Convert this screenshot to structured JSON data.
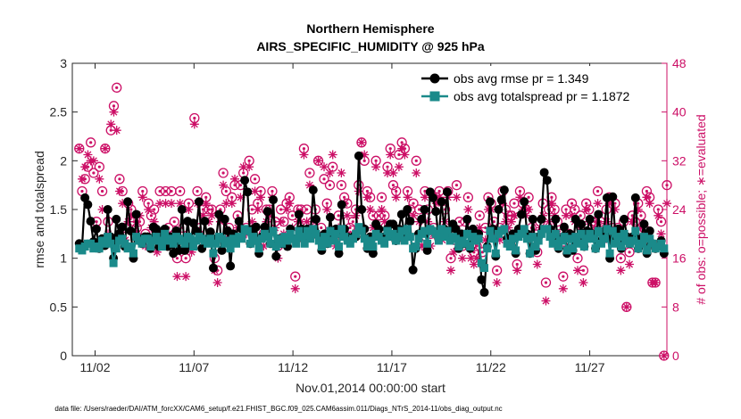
{
  "colors": {
    "rmse": "#000000",
    "spread": "#1a8a8a",
    "obs": "#cc0f66",
    "axis": "#262626"
  },
  "chart_data": {
    "type": "line",
    "title": "Northern Hemisphere",
    "subtitle": "AIRS_SPECIFIC_HUMIDITY @ 925 hPa",
    "xlabel": "Nov.01,2014 00:00:00 start",
    "ylabel": "rmse and totalspread",
    "y2label": "# of obs: o=possible; ∗=evaluated",
    "footnote": "data file: /Users/raeder/DAI/ATM_forcXX/CAM6_setup/f.e21.FHIST_BGC.f09_025.CAM6assim.011/Diags_NTrS_2014-11/obs_diag_output.nc",
    "xlim": [
      0.6,
      30.65
    ],
    "ylim": [
      0,
      3
    ],
    "y2lim": [
      0,
      48
    ],
    "x_ticks": [
      1.75,
      6.75,
      11.75,
      16.75,
      21.75,
      26.75
    ],
    "x_tick_labels": [
      "11/02",
      "11/07",
      "11/12",
      "11/17",
      "11/22",
      "11/27"
    ],
    "y_ticks": [
      0,
      0.5,
      1,
      1.5,
      2,
      2.5,
      3
    ],
    "y_tick_labels": [
      "0",
      "0.5",
      "1",
      "1.5",
      "2",
      "2.5",
      "3"
    ],
    "y2_ticks": [
      0,
      8,
      16,
      24,
      32,
      40,
      48
    ],
    "y2_tick_labels": [
      "0",
      "8",
      "16",
      "24",
      "32",
      "40",
      "48"
    ],
    "legend_position": "top-right",
    "series": [
      {
        "name": "obs avg rmse pr = 1.349",
        "values": [
          1.15,
          1.13,
          1.62,
          1.55,
          1.38,
          1.17,
          1.3,
          1.1,
          1.2,
          1.13,
          1.5,
          1.22,
          1.0,
          1.4,
          1.25,
          1.32,
          1.12,
          1.58,
          1.28,
          1.0,
          1.45,
          1.2,
          1.15,
          1.22,
          1.22,
          1.1,
          1.32,
          1.3,
          1.12,
          1.25,
          1.3,
          1.12,
          1.22,
          1.05,
          1.28,
          1.08,
          1.5,
          1.08,
          1.38,
          1.14,
          1.36,
          1.28,
          1.58,
          1.1,
          1.38,
          1.2,
          1.27,
          0.9,
          1.2,
          1.45,
          1.08,
          1.4,
          1.28,
          0.92,
          1.25,
          1.22,
          1.38,
          1.3,
          1.8,
          1.68,
          1.15,
          1.3,
          1.32,
          1.05,
          1.22,
          1.32,
          1.48,
          1.15,
          1.6,
          1.02,
          1.2,
          1.15,
          1.2,
          1.12,
          1.3,
          1.2,
          1.18,
          1.45,
          1.3,
          1.2,
          1.3,
          1.22,
          1.7,
          1.4,
          1.22,
          1.08,
          1.25,
          1.15,
          1.42,
          1.2,
          1.3,
          1.05,
          1.55,
          1.3,
          1.22,
          1.18,
          1.22,
          1.22,
          2.05,
          1.5,
          1.3,
          1.1,
          1.22,
          1.05,
          1.35,
          1.3,
          1.22,
          1.2,
          1.3,
          1.35,
          1.35,
          1.18,
          1.3,
          1.45,
          1.22,
          1.5,
          1.38,
          0.88,
          1.1,
          1.25,
          1.4,
          1.5,
          1.08,
          1.68,
          1.62,
          1.48,
          1.2,
          1.58,
          1.3,
          1.68,
          1.2,
          1.35,
          1.3,
          1.1,
          1.25,
          1.15,
          1.4,
          1.1,
          1.3,
          1.22,
          1.25,
          0.78,
          0.65,
          1.12,
          1.58,
          1.3,
          1.02,
          1.5,
          1.6,
          1.7,
          1.2,
          1.15,
          1.25,
          1.05,
          1.3,
          1.45,
          1.58,
          1.25,
          1.05,
          1.4,
          1.08,
          1.22,
          1.4,
          1.88,
          1.8,
          1.3,
          1.22,
          1.4,
          1.1,
          1.2,
          1.32,
          1.05,
          1.25,
          1.08,
          1.4,
          1.22,
          1.35,
          1.12,
          1.28,
          1.4,
          1.25,
          1.1,
          1.45,
          1.18,
          1.28,
          1.62,
          1.0,
          1.63,
          1.2,
          1.3,
          1.1,
          1.4,
          1.22,
          1.15,
          1.22,
          1.62,
          1.1,
          1.2,
          1.35,
          1.05,
          1.28,
          1.15,
          1.1,
          1.12,
          1.18,
          1.05
        ]
      },
      {
        "name": "obs avg totalspread pr = 1.1872",
        "values": [
          1.1,
          1.08,
          1.12,
          1.15,
          1.15,
          1.1,
          1.12,
          1.1,
          1.18,
          1.15,
          1.22,
          1.15,
          0.95,
          1.1,
          1.18,
          1.2,
          1.15,
          1.1,
          1.12,
          1.05,
          1.22,
          1.18,
          1.15,
          1.2,
          1.2,
          1.12,
          1.18,
          1.22,
          1.18,
          1.12,
          1.25,
          1.18,
          1.2,
          1.15,
          1.22,
          1.2,
          1.18,
          1.15,
          1.22,
          1.2,
          1.12,
          1.18,
          1.22,
          1.2,
          1.18,
          1.15,
          1.2,
          1.05,
          1.15,
          1.22,
          1.2,
          1.15,
          1.18,
          1.1,
          1.2,
          1.15,
          1.22,
          1.2,
          1.3,
          1.28,
          1.15,
          1.22,
          1.18,
          1.1,
          1.2,
          1.25,
          1.22,
          1.15,
          1.28,
          1.12,
          1.2,
          1.15,
          1.22,
          1.18,
          1.25,
          1.2,
          1.15,
          1.28,
          1.22,
          1.15,
          1.28,
          1.2,
          1.3,
          1.25,
          1.18,
          1.12,
          1.22,
          1.15,
          1.28,
          1.18,
          1.25,
          1.12,
          1.3,
          1.22,
          1.18,
          1.15,
          1.2,
          1.25,
          1.32,
          1.28,
          1.2,
          1.12,
          1.18,
          1.12,
          1.25,
          1.22,
          1.18,
          1.15,
          1.28,
          1.22,
          1.25,
          1.18,
          1.22,
          1.28,
          1.18,
          1.3,
          1.22,
          1.1,
          1.12,
          1.2,
          1.25,
          1.28,
          1.15,
          1.3,
          1.28,
          1.25,
          1.18,
          1.3,
          1.22,
          1.28,
          1.18,
          1.22,
          1.2,
          1.12,
          1.18,
          1.15,
          1.25,
          1.12,
          1.22,
          1.18,
          1.2,
          0.95,
          0.9,
          1.1,
          1.28,
          1.2,
          1.05,
          1.25,
          1.28,
          1.3,
          1.15,
          1.12,
          1.2,
          1.08,
          1.22,
          1.25,
          1.3,
          1.2,
          1.05,
          1.22,
          1.12,
          1.18,
          1.25,
          1.3,
          1.3,
          1.22,
          1.15,
          1.25,
          1.12,
          1.18,
          1.22,
          1.08,
          1.2,
          1.1,
          1.22,
          1.15,
          1.25,
          1.12,
          1.2,
          1.25,
          1.2,
          1.1,
          1.28,
          1.15,
          1.2,
          1.3,
          1.05,
          1.28,
          1.15,
          1.22,
          1.12,
          1.25,
          1.18,
          1.15,
          1.18,
          1.28,
          1.1,
          1.15,
          1.22,
          1.08,
          1.2,
          1.15,
          1.1,
          1.12,
          1.15,
          1.1
        ]
      }
    ],
    "obs_counts": {
      "possible": [
        34,
        27,
        29,
        31,
        35,
        30,
        22,
        31,
        27,
        34,
        22,
        37,
        41,
        44,
        29,
        27,
        21,
        25,
        24,
        22,
        21,
        22,
        27,
        20,
        25,
        23,
        24,
        18,
        27,
        20,
        27,
        21,
        27,
        22,
        16,
        27,
        21,
        16,
        25,
        18,
        39,
        27,
        21,
        24,
        26,
        24,
        24,
        16,
        14,
        24,
        30,
        27,
        21,
        26,
        28,
        23,
        28,
        30,
        21,
        32,
        24,
        29,
        25,
        27,
        20,
        24,
        24,
        27,
        22,
        18,
        24,
        22,
        25,
        26,
        23,
        13,
        24,
        24,
        34,
        24,
        30,
        22,
        24,
        32,
        21,
        29,
        25,
        28,
        31,
        20,
        23,
        28,
        26,
        25,
        21,
        22,
        24,
        28,
        35,
        32,
        27,
        26,
        23,
        32,
        23,
        26,
        23,
        31,
        34,
        28,
        27,
        33,
        35,
        34,
        27,
        24,
        25,
        32,
        24,
        19,
        27,
        24,
        20,
        21,
        26,
        27,
        20,
        24,
        27,
        16,
        19,
        28,
        22,
        18,
        22,
        26,
        18,
        17,
        18,
        23,
        17,
        21,
        26,
        25,
        22,
        14,
        21,
        27,
        24,
        23,
        23,
        25,
        15,
        27,
        25,
        24,
        26,
        21,
        20,
        17,
        22,
        25,
        12,
        24,
        26,
        24,
        22,
        20,
        13,
        24,
        20,
        25,
        24,
        16,
        23,
        14,
        25,
        24,
        22,
        22,
        27,
        22,
        21,
        24,
        26,
        21,
        25,
        21,
        16,
        22,
        8,
        17,
        23,
        22,
        25,
        23,
        21,
        27,
        26,
        12,
        12,
        24,
        22,
        0,
        28
      ],
      "evaluated": [
        34,
        29,
        31,
        33,
        32,
        32,
        21,
        29,
        24,
        34,
        20,
        38,
        40,
        37,
        27,
        25,
        19,
        22,
        23,
        23,
        20,
        23,
        26,
        18,
        24,
        21,
        22,
        17,
        25,
        18,
        25,
        20,
        25,
        20,
        13,
        25,
        19,
        13,
        24,
        17,
        38,
        25,
        20,
        23,
        25,
        22,
        23,
        14,
        12,
        22,
        28,
        25,
        20,
        25,
        29,
        21,
        26,
        31,
        20,
        31,
        22,
        27,
        24,
        26,
        18,
        22,
        23,
        26,
        21,
        16,
        22,
        20,
        24,
        25,
        21,
        11,
        22,
        22,
        33,
        22,
        28,
        20,
        22,
        32,
        19,
        31,
        24,
        30,
        33,
        18,
        21,
        30,
        25,
        23,
        19,
        20,
        23,
        27,
        35,
        33,
        26,
        24,
        21,
        31,
        21,
        24,
        22,
        30,
        33,
        30,
        26,
        31,
        34,
        33,
        26,
        22,
        23,
        30,
        22,
        18,
        26,
        22,
        18,
        20,
        25,
        26,
        19,
        22,
        26,
        14,
        17,
        26,
        20,
        16,
        20,
        24,
        16,
        15,
        16,
        21,
        15,
        19,
        24,
        24,
        20,
        12,
        19,
        25,
        22,
        21,
        22,
        23,
        14,
        26,
        24,
        23,
        24,
        20,
        18,
        15,
        21,
        23,
        9,
        22,
        25,
        23,
        20,
        18,
        11,
        23,
        18,
        23,
        22,
        14,
        21,
        12,
        24,
        22,
        20,
        21,
        25,
        20,
        19,
        22,
        25,
        19,
        24,
        20,
        14,
        20,
        8,
        15,
        22,
        20,
        24,
        21,
        20,
        26,
        25,
        12,
        12,
        23,
        20,
        0,
        25
      ]
    }
  }
}
